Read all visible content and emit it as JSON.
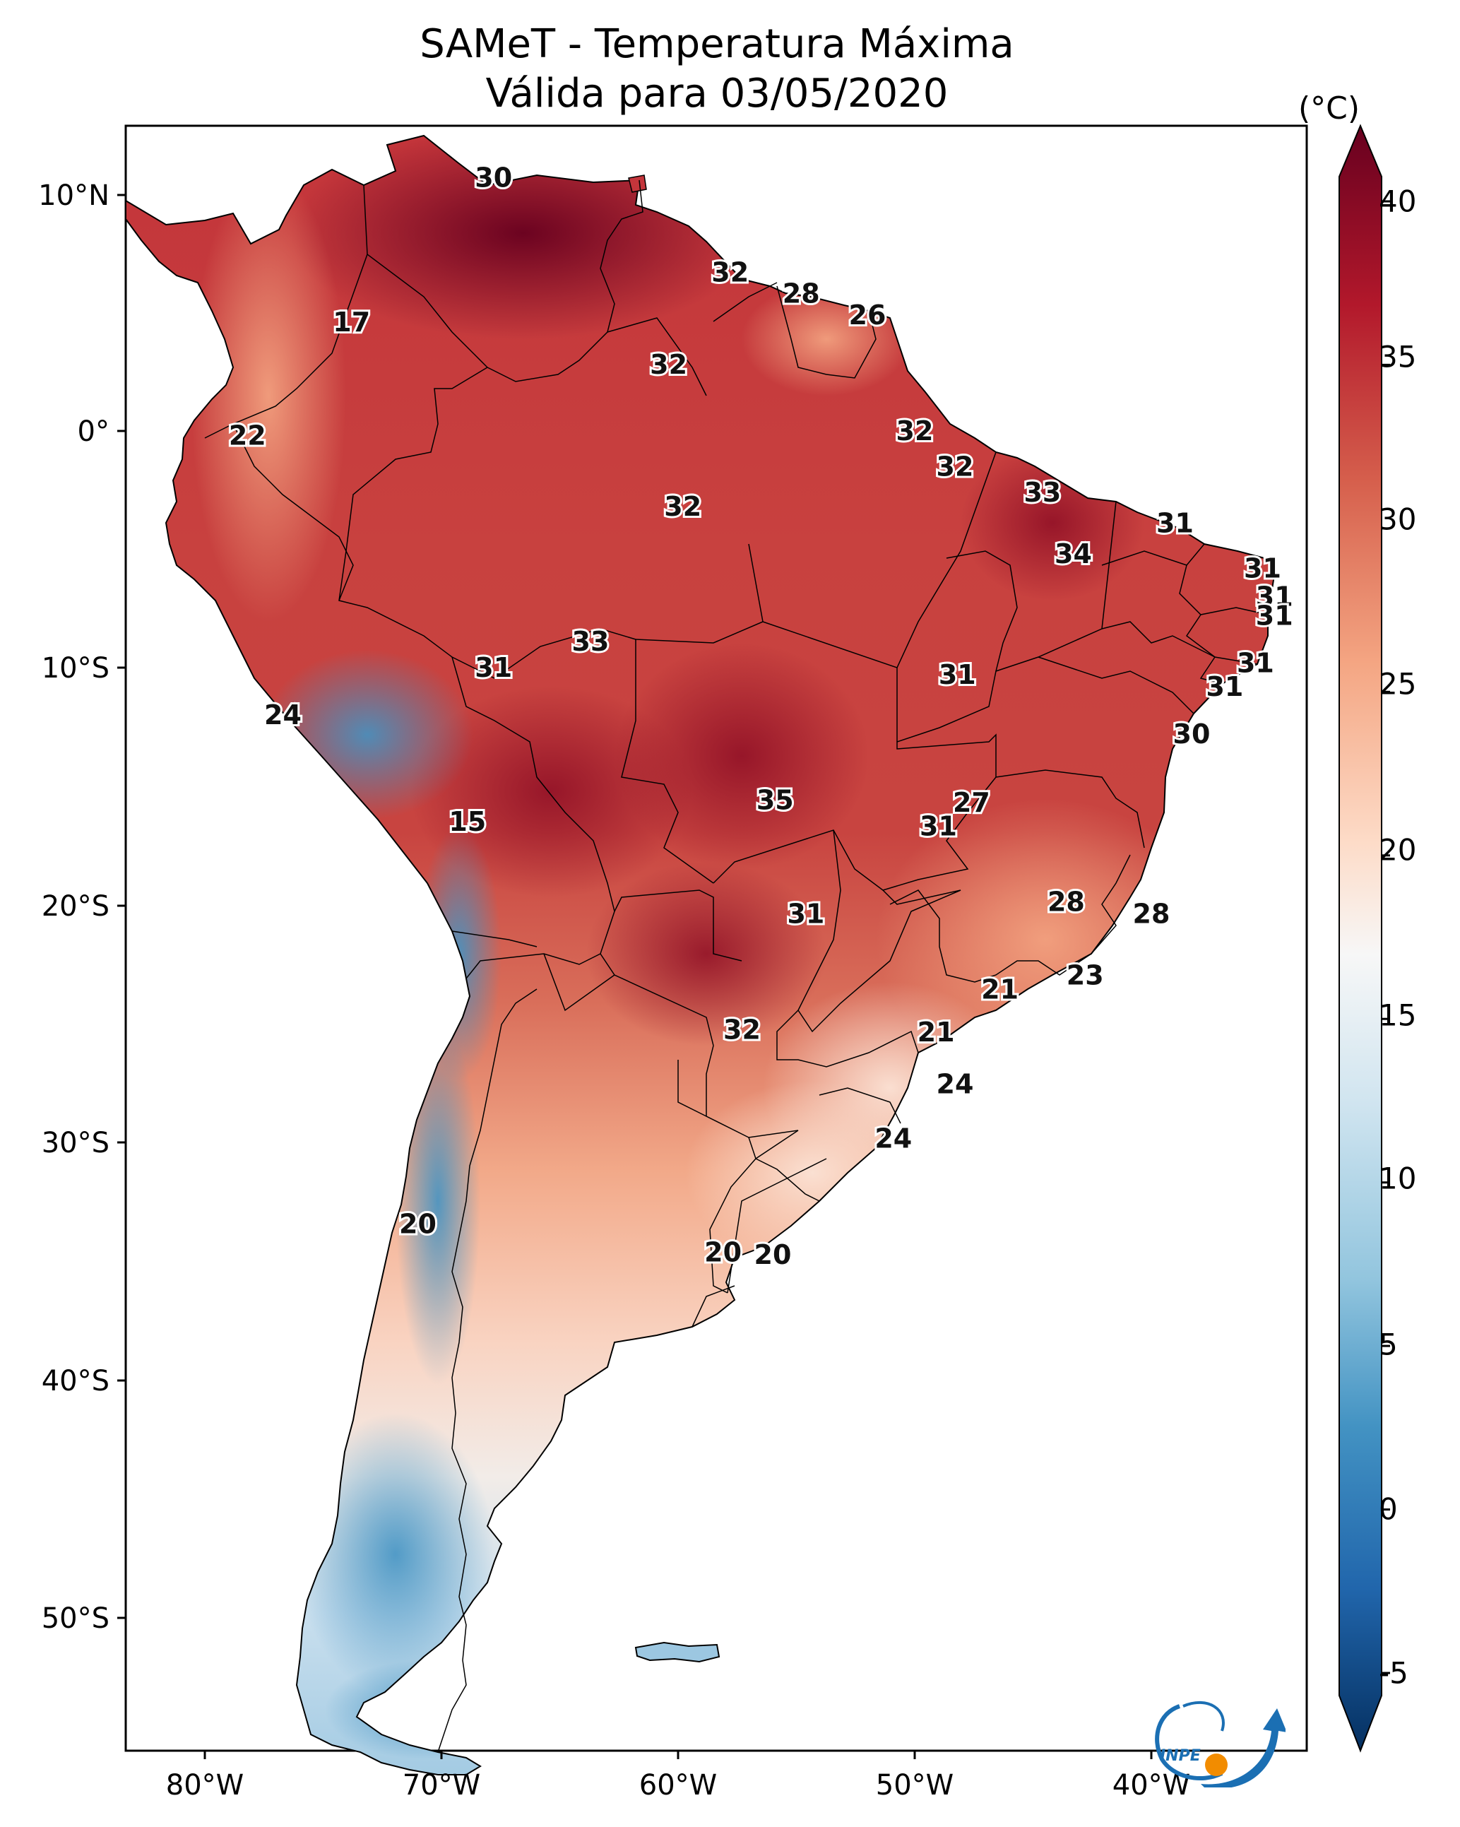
{
  "title": {
    "line1": "SAMeT - Temperatura Máxima",
    "line2": "Válida para 03/05/2020"
  },
  "colorbar": {
    "unit": "(°C)",
    "ticks": [
      "40",
      "35",
      "30",
      "25",
      "20",
      "15",
      "10",
      "5",
      "0",
      "-5"
    ],
    "min": -7,
    "max": 42,
    "colors_high_to_low": [
      "#67001f",
      "#b2182b",
      "#d6604d",
      "#f4a582",
      "#fddbc7",
      "#f7f7f7",
      "#d1e5f0",
      "#92c5de",
      "#4393c3",
      "#2166ac",
      "#053061"
    ]
  },
  "axes": {
    "lat_labels": [
      "10°N",
      "0°",
      "10°S",
      "20°S",
      "30°S",
      "40°S",
      "50°S"
    ],
    "lon_labels": [
      "80°W",
      "70°W",
      "60°W",
      "50°W",
      "40°W"
    ]
  },
  "map_labels": [
    {
      "text": "30",
      "lon": -67.8,
      "lat": 10.7
    },
    {
      "text": "32",
      "lon": -57.8,
      "lat": 6.7
    },
    {
      "text": "28",
      "lon": -54.8,
      "lat": 5.8
    },
    {
      "text": "26",
      "lon": -52.0,
      "lat": 4.9
    },
    {
      "text": "17",
      "lon": -73.8,
      "lat": 4.6
    },
    {
      "text": "32",
      "lon": -60.4,
      "lat": 2.8
    },
    {
      "text": "22",
      "lon": -78.2,
      "lat": -0.2
    },
    {
      "text": "32",
      "lon": -50.0,
      "lat": 0.0
    },
    {
      "text": "32",
      "lon": -48.3,
      "lat": -1.5
    },
    {
      "text": "32",
      "lon": -59.8,
      "lat": -3.2
    },
    {
      "text": "33",
      "lon": -44.6,
      "lat": -2.6
    },
    {
      "text": "31",
      "lon": -39.0,
      "lat": -3.9
    },
    {
      "text": "34",
      "lon": -43.3,
      "lat": -5.2
    },
    {
      "text": "31",
      "lon": -35.3,
      "lat": -5.8
    },
    {
      "text": "31",
      "lon": -34.8,
      "lat": -7.0
    },
    {
      "text": "31",
      "lon": -34.8,
      "lat": -7.8
    },
    {
      "text": "33",
      "lon": -63.7,
      "lat": -8.9
    },
    {
      "text": "31",
      "lon": -67.8,
      "lat": -10.0
    },
    {
      "text": "31",
      "lon": -48.2,
      "lat": -10.3
    },
    {
      "text": "31",
      "lon": -35.6,
      "lat": -9.8
    },
    {
      "text": "31",
      "lon": -36.9,
      "lat": -10.8
    },
    {
      "text": "24",
      "lon": -76.7,
      "lat": -12.0
    },
    {
      "text": "30",
      "lon": -38.3,
      "lat": -12.8
    },
    {
      "text": "35",
      "lon": -55.9,
      "lat": -15.6
    },
    {
      "text": "27",
      "lon": -47.6,
      "lat": -15.7
    },
    {
      "text": "15",
      "lon": -68.9,
      "lat": -16.5
    },
    {
      "text": "31",
      "lon": -49.0,
      "lat": -16.7
    },
    {
      "text": "28",
      "lon": -43.6,
      "lat": -19.9
    },
    {
      "text": "28",
      "lon": -40.0,
      "lat": -20.4
    },
    {
      "text": "31",
      "lon": -54.6,
      "lat": -20.4
    },
    {
      "text": "23",
      "lon": -42.8,
      "lat": -23.0
    },
    {
      "text": "21",
      "lon": -46.4,
      "lat": -23.6
    },
    {
      "text": "32",
      "lon": -57.3,
      "lat": -25.3
    },
    {
      "text": "21",
      "lon": -49.1,
      "lat": -25.4
    },
    {
      "text": "24",
      "lon": -48.3,
      "lat": -27.6
    },
    {
      "text": "24",
      "lon": -50.9,
      "lat": -29.9
    },
    {
      "text": "20",
      "lon": -71.0,
      "lat": -33.5
    },
    {
      "text": "20",
      "lon": -58.1,
      "lat": -34.7
    },
    {
      "text": "20",
      "lon": -56.0,
      "lat": -34.8
    }
  ],
  "logo": {
    "text": "INPE"
  }
}
